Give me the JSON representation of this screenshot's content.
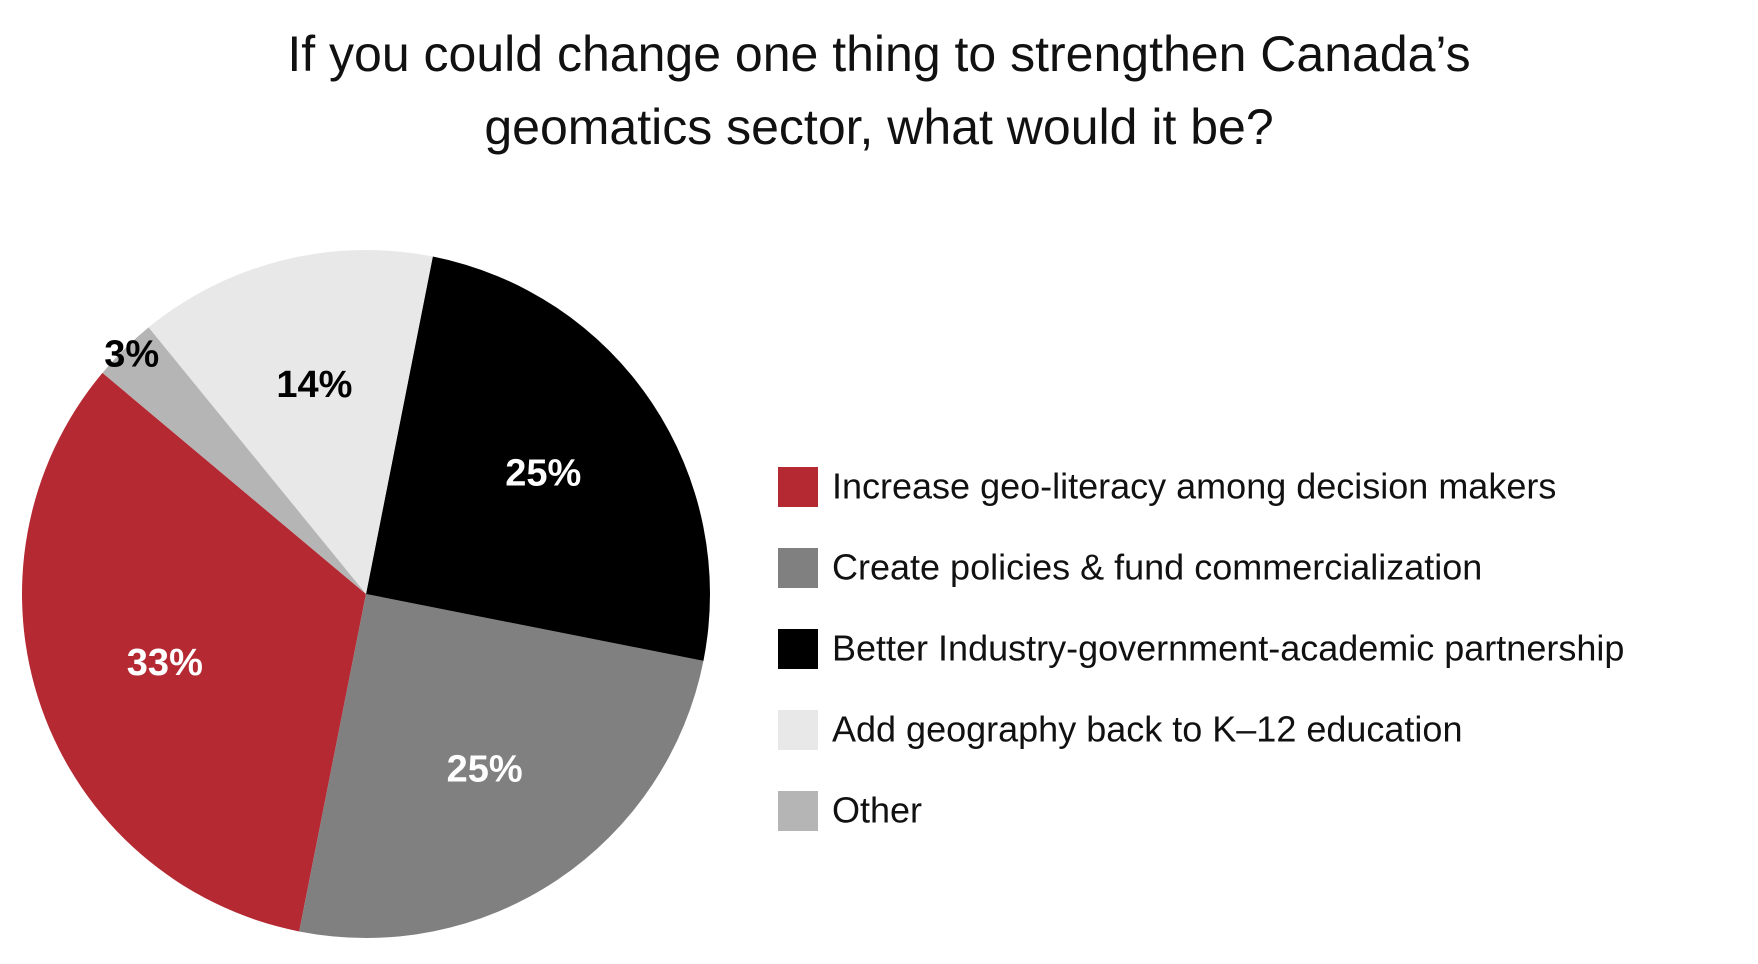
{
  "chart_data": {
    "type": "pie",
    "title": "If you could change one thing to strengthen Canada’s geomatics sector, what would it be?",
    "categories": [
      "Increase geo-literacy among decision makers",
      "Create policies & fund commercialization",
      "Better Industry-government-academic partnership",
      "Add geography back to K–12 education",
      "Other"
    ],
    "values": [
      33,
      25,
      25,
      14,
      3
    ],
    "value_labels": [
      "33%",
      "25%",
      "25%",
      "14%",
      "3%"
    ],
    "colors": [
      "#b52933",
      "#808080",
      "#000000",
      "#e8e8e8",
      "#b5b5b5"
    ],
    "legend": "right"
  }
}
